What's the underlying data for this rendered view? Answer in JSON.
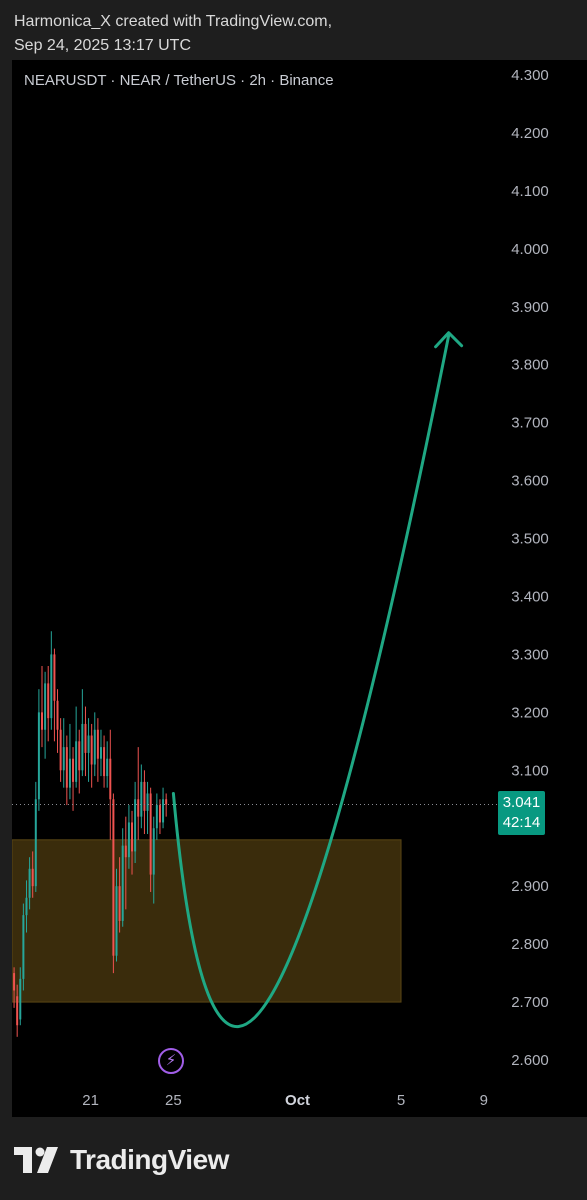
{
  "header": {
    "author_line": "Harmonica_X created with TradingView.com,",
    "date_line": "Sep 24, 2025 13:17 UTC"
  },
  "symbol": {
    "title": "NEARUSDT · NEAR / TetherUS · 2h · Binance"
  },
  "price_tag": {
    "price": "3.041",
    "countdown": "42:14"
  },
  "footer": {
    "brand": "TradingView",
    "logo_icon": "tradingview-logo-icon"
  },
  "colors": {
    "background": "#000000",
    "up": "#26a69a",
    "down": "#ef5350",
    "zone": "#3a2c0c",
    "projection": "#1fa884",
    "price_tag": "#089981"
  },
  "flash_icon": "lightning-icon",
  "chart_data": {
    "type": "candlestick",
    "title": "NEARUSDT · NEAR / TetherUS · 2h · Binance",
    "y_ticks": [
      "4.300",
      "4.200",
      "4.100",
      "4.000",
      "3.900",
      "3.800",
      "3.700",
      "3.600",
      "3.500",
      "3.400",
      "3.300",
      "3.200",
      "3.100",
      "2.900",
      "2.800",
      "2.700",
      "2.600"
    ],
    "ylim": [
      2.55,
      4.33
    ],
    "x_ticks": [
      {
        "label": "21",
        "day": 21,
        "bold": false
      },
      {
        "label": "25",
        "day": 25,
        "bold": false
      },
      {
        "label": "Oct",
        "day": 31,
        "bold": true
      },
      {
        "label": "5",
        "day": 36,
        "bold": false
      },
      {
        "label": "9",
        "day": 40,
        "bold": false
      }
    ],
    "xlim": [
      17.2,
      40.3
    ],
    "last_price": 3.041,
    "zone": {
      "low": 2.7,
      "high": 2.98,
      "x_start": 17.2,
      "x_end": 36.0
    },
    "projection": [
      [
        25.0,
        3.06
      ],
      [
        29.7,
        2.71
      ],
      [
        38.3,
        3.85
      ]
    ],
    "candles": [
      [
        17.3,
        2.75,
        2.72,
        2.76,
        2.69
      ],
      [
        17.45,
        2.71,
        2.66,
        2.73,
        2.64
      ],
      [
        17.6,
        2.67,
        2.74,
        2.76,
        2.66
      ],
      [
        17.75,
        2.74,
        2.85,
        2.87,
        2.72
      ],
      [
        17.9,
        2.85,
        2.88,
        2.91,
        2.82
      ],
      [
        18.05,
        2.88,
        2.93,
        2.95,
        2.86
      ],
      [
        18.2,
        2.93,
        2.9,
        2.96,
        2.88
      ],
      [
        18.35,
        2.9,
        3.05,
        3.08,
        2.89
      ],
      [
        18.5,
        3.05,
        3.2,
        3.24,
        3.03
      ],
      [
        18.65,
        3.2,
        3.17,
        3.28,
        3.14
      ],
      [
        18.8,
        3.17,
        3.25,
        3.27,
        3.12
      ],
      [
        18.95,
        3.25,
        3.19,
        3.28,
        3.15
      ],
      [
        19.1,
        3.19,
        3.3,
        3.34,
        3.17
      ],
      [
        19.25,
        3.3,
        3.22,
        3.31,
        3.15
      ],
      [
        19.4,
        3.22,
        3.17,
        3.24,
        3.13
      ],
      [
        19.55,
        3.17,
        3.1,
        3.19,
        3.08
      ],
      [
        19.7,
        3.1,
        3.14,
        3.19,
        3.07
      ],
      [
        19.85,
        3.14,
        3.07,
        3.16,
        3.04
      ],
      [
        20.0,
        3.07,
        3.12,
        3.18,
        3.05
      ],
      [
        20.15,
        3.12,
        3.08,
        3.14,
        3.03
      ],
      [
        20.3,
        3.08,
        3.15,
        3.21,
        3.07
      ],
      [
        20.45,
        3.15,
        3.1,
        3.17,
        3.06
      ],
      [
        20.6,
        3.1,
        3.18,
        3.24,
        3.09
      ],
      [
        20.75,
        3.18,
        3.13,
        3.21,
        3.09
      ],
      [
        20.9,
        3.13,
        3.16,
        3.19,
        3.08
      ],
      [
        21.05,
        3.16,
        3.11,
        3.18,
        3.07
      ],
      [
        21.2,
        3.11,
        3.17,
        3.2,
        3.09
      ],
      [
        21.35,
        3.17,
        3.12,
        3.19,
        3.08
      ],
      [
        21.5,
        3.12,
        3.14,
        3.17,
        3.09
      ],
      [
        21.65,
        3.14,
        3.09,
        3.16,
        3.07
      ],
      [
        21.8,
        3.09,
        3.12,
        3.15,
        3.07
      ],
      [
        21.95,
        3.12,
        3.05,
        3.17,
        2.98
      ],
      [
        22.1,
        3.05,
        2.78,
        3.06,
        2.75
      ],
      [
        22.25,
        2.78,
        2.9,
        2.93,
        2.77
      ],
      [
        22.4,
        2.9,
        2.84,
        2.95,
        2.82
      ],
      [
        22.55,
        2.84,
        2.97,
        3.0,
        2.83
      ],
      [
        22.7,
        2.97,
        2.95,
        3.02,
        2.86
      ],
      [
        22.85,
        2.95,
        3.01,
        3.04,
        2.93
      ],
      [
        23.0,
        3.01,
        2.96,
        3.03,
        2.92
      ],
      [
        23.15,
        2.96,
        3.05,
        3.08,
        2.94
      ],
      [
        23.3,
        3.05,
        3.02,
        3.14,
        2.98
      ],
      [
        23.45,
        3.02,
        3.08,
        3.11,
        3.0
      ],
      [
        23.6,
        3.08,
        3.03,
        3.1,
        2.99
      ],
      [
        23.75,
        3.03,
        3.06,
        3.08,
        2.99
      ],
      [
        23.9,
        3.06,
        2.92,
        3.07,
        2.89
      ],
      [
        24.05,
        2.92,
        3.0,
        3.02,
        2.87
      ],
      [
        24.2,
        3.0,
        3.04,
        3.06,
        2.98
      ],
      [
        24.35,
        3.04,
        3.01,
        3.05,
        2.99
      ],
      [
        24.5,
        3.01,
        3.05,
        3.07,
        3.0
      ],
      [
        24.65,
        3.05,
        3.041,
        3.06,
        3.02
      ]
    ]
  }
}
